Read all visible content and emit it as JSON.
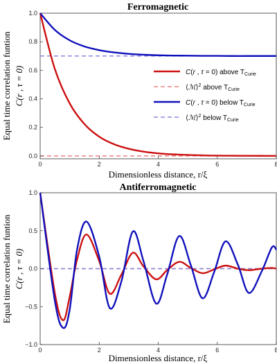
{
  "chart_data": [
    {
      "type": "line",
      "title": "Ferromagnetic",
      "xlabel": "Dimensionless distance, r/ξ",
      "ylabel_line1": "Equal time correlation funtion",
      "ylabel_line2": "C(r , τ = 0)",
      "xlim": [
        0,
        8
      ],
      "ylim": [
        -0.02,
        1.0
      ],
      "xticks": [
        0,
        2,
        4,
        6,
        8
      ],
      "yticks": [
        0.0,
        0.2,
        0.4,
        0.6,
        0.8,
        1.0
      ],
      "xtick_labels": [
        "0",
        "2",
        "4",
        "6",
        "8"
      ],
      "ytick_labels": [
        "0.0",
        "0.2",
        "0.4",
        "0.6",
        "0.8",
        "1.0"
      ],
      "legend_position": "center-right",
      "x": [
        0,
        0.5,
        1,
        1.5,
        2,
        2.5,
        3,
        3.5,
        4,
        4.5,
        5,
        5.5,
        6,
        6.5,
        7,
        7.5,
        8
      ],
      "series": [
        {
          "name": "C(r , τ = 0) above T_Curie",
          "color": "#cc1010",
          "dashed": false,
          "values": [
            1.0,
            0.607,
            0.368,
            0.223,
            0.135,
            0.082,
            0.05,
            0.03,
            0.018,
            0.011,
            0.007,
            0.004,
            0.002,
            0.0015,
            0.0009,
            0.0006,
            0.0003
          ]
        },
        {
          "name": "⟨M⟩² above T_Curie",
          "color": "#e88080",
          "dashed": true,
          "values": [
            0,
            0,
            0,
            0,
            0,
            0,
            0,
            0,
            0,
            0,
            0,
            0,
            0,
            0,
            0,
            0,
            0
          ]
        },
        {
          "name": "C(r , τ = 0) below T_Curie",
          "color": "#1010bb",
          "dashed": false,
          "values": [
            1.0,
            0.882,
            0.81,
            0.767,
            0.741,
            0.725,
            0.715,
            0.709,
            0.705,
            0.703,
            0.702,
            0.701,
            0.701,
            0.7,
            0.7,
            0.7,
            0.7
          ]
        },
        {
          "name": "⟨M⟩² below T_Curie",
          "color": "#8888dd",
          "dashed": true,
          "values": [
            0.7,
            0.7,
            0.7,
            0.7,
            0.7,
            0.7,
            0.7,
            0.7,
            0.7,
            0.7,
            0.7,
            0.7,
            0.7,
            0.7,
            0.7,
            0.7,
            0.7
          ]
        }
      ]
    },
    {
      "type": "line",
      "title": "Antiferromagnetic",
      "xlabel": "Dimensionless distance, r/ξ",
      "ylabel_line1": "Equal time correlation funtion",
      "ylabel_line2": "C(r , τ = 0)",
      "xlim": [
        0,
        8
      ],
      "ylim": [
        -1.0,
        1.0
      ],
      "xticks": [
        0,
        2,
        4,
        6,
        8
      ],
      "yticks": [
        -1.0,
        -0.5,
        0.0,
        0.5,
        1.0
      ],
      "xtick_labels": [
        "0",
        "2",
        "4",
        "6",
        "8"
      ],
      "ytick_labels": [
        "−1.0",
        "−0.5",
        "0.0",
        "0.5",
        "1.0"
      ],
      "x": [
        0,
        0.5,
        0.78,
        1,
        1.25,
        1.57,
        2,
        2.36,
        2.75,
        3.14,
        3.5,
        3.93,
        4.3,
        4.71,
        5.1,
        5.5,
        5.89,
        6.28,
        6.7,
        7.07,
        7.5,
        7.85,
        8
      ],
      "series": [
        {
          "name": "C(r , τ = 0) above T_Curie",
          "color": "#cc1010",
          "dashed": false,
          "values": [
            1.0,
            -0.33,
            -0.68,
            -0.37,
            0.12,
            0.45,
            0.1,
            -0.33,
            -0.08,
            0.21,
            0.03,
            -0.14,
            -0.02,
            0.09,
            0.01,
            -0.06,
            -0.01,
            0.04,
            0.0,
            -0.02,
            0.0,
            0.01,
            0.0
          ]
        },
        {
          "name": "⟨M⟩² above T_Curie",
          "color": "#e88080",
          "dashed": true,
          "values": [
            0,
            0,
            0,
            0,
            0,
            0,
            0,
            0,
            0,
            0,
            0,
            0,
            0,
            0,
            0,
            0,
            0,
            0,
            0,
            0,
            0,
            0,
            0
          ]
        },
        {
          "name": "C(r , τ = 0) below T_Curie",
          "color": "#1010bb",
          "dashed": false,
          "values": [
            1.0,
            -0.43,
            -0.78,
            -0.54,
            0.25,
            0.62,
            0.16,
            -0.52,
            -0.17,
            0.49,
            0.1,
            -0.46,
            -0.08,
            0.43,
            0.05,
            -0.39,
            -0.05,
            0.36,
            0.05,
            -0.32,
            -0.04,
            0.28,
            0.25
          ]
        },
        {
          "name": "⟨M⟩² below T_Curie",
          "color": "#8888dd",
          "dashed": true,
          "values": [
            0,
            0,
            0,
            0,
            0,
            0,
            0,
            0,
            0,
            0,
            0,
            0,
            0,
            0,
            0,
            0,
            0,
            0,
            0,
            0,
            0,
            0,
            0
          ]
        }
      ]
    }
  ]
}
